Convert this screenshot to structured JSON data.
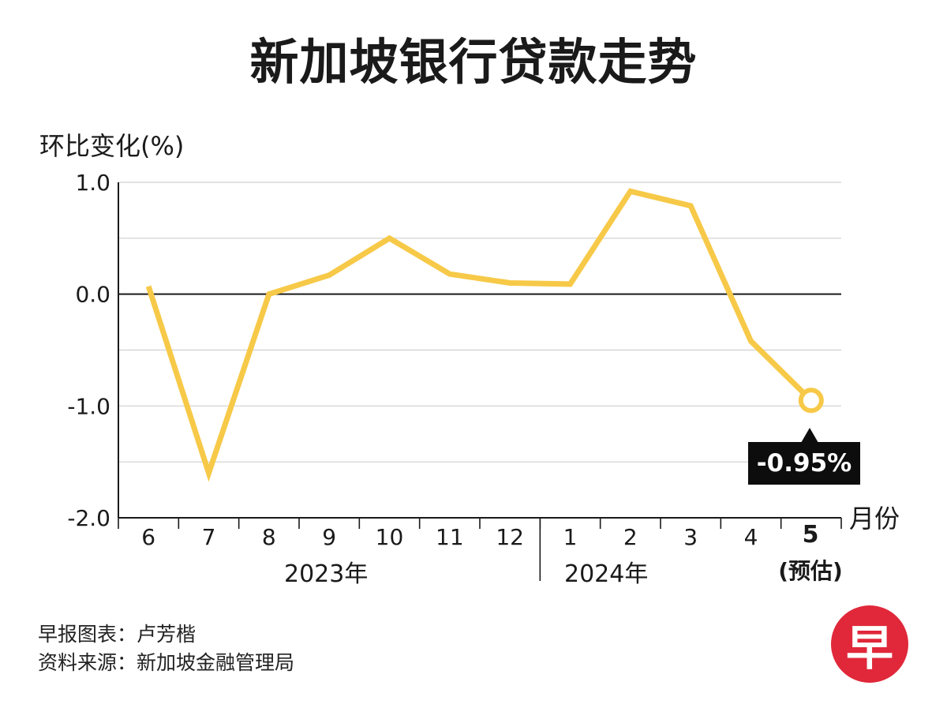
{
  "title": "新加坡银行贷款走势",
  "chart_data": {
    "type": "line",
    "title": "新加坡银行贷款走势",
    "ylabel": "环比变化(%)",
    "xlabel": "月份",
    "ylim": [
      -2.0,
      1.0
    ],
    "yticks": [
      "1.0",
      "0.0",
      "-1.0",
      "-2.0"
    ],
    "ytick_values": [
      1.0,
      0.0,
      -1.0,
      -2.0
    ],
    "categories": [
      "6",
      "7",
      "8",
      "9",
      "10",
      "11",
      "12",
      "1",
      "2",
      "3",
      "4",
      "5"
    ],
    "series": [
      {
        "name": "环比变化",
        "color": "#f7c948",
        "values": [
          0.07,
          -1.6,
          0.0,
          0.17,
          0.5,
          0.18,
          0.1,
          0.09,
          0.92,
          0.79,
          -0.42,
          -0.95
        ]
      }
    ],
    "year_labels": [
      "2023年",
      "2024年"
    ],
    "estimate_note": "(预估)",
    "callout": "-0.95%"
  },
  "credits": {
    "line1": "早报图表：卢芳楷",
    "line2": "资料来源：新加坡金融管理局"
  },
  "logo": {
    "text": "早",
    "color": "#e0283a"
  },
  "colors": {
    "line": "#f7c948",
    "grid": "#cfcfcf",
    "axis": "#1a1a1a"
  }
}
